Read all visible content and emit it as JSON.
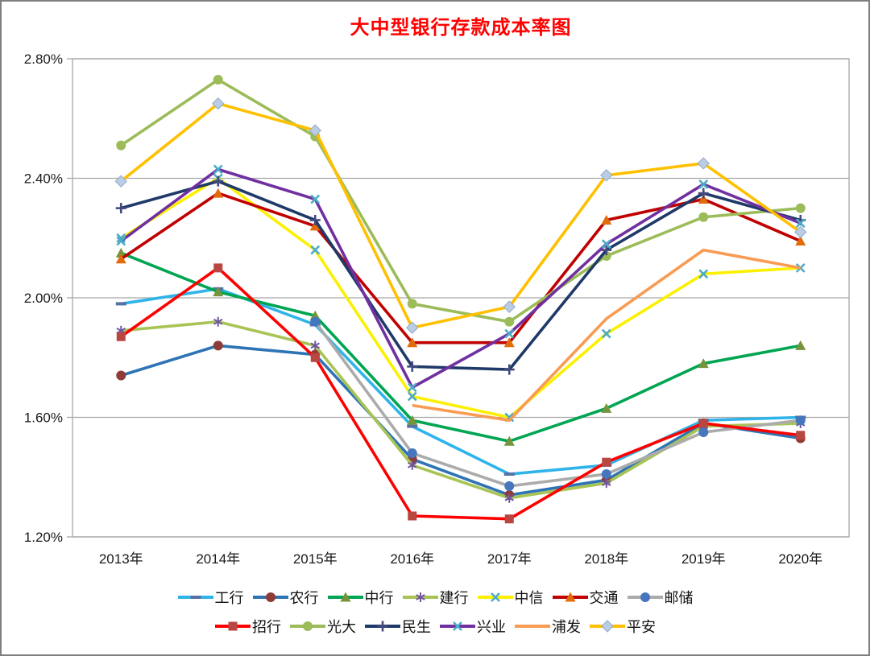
{
  "chart_data": {
    "type": "line",
    "title": "大中型银行存款成本率图",
    "title_color": "#FF0000",
    "x_categories": [
      "2013年",
      "2014年",
      "2015年",
      "2016年",
      "2017年",
      "2018年",
      "2019年",
      "2020年"
    ],
    "y_ticks": [
      "2.80%",
      "2.40%",
      "2.00%",
      "1.60%",
      "1.20%"
    ],
    "ylim": [
      1.2,
      2.8
    ],
    "grid": true,
    "gridline_color": "#A6A6A6",
    "axis_text_color": "#1a1a1a",
    "legend_position": "bottom",
    "series": [
      {
        "key": "icbc",
        "name": "工行",
        "color": "#2FB4E9",
        "marker": "dash",
        "marker_color": "#5571A6",
        "values": [
          1.98,
          2.03,
          1.91,
          1.57,
          1.41,
          1.44,
          1.59,
          1.6
        ]
      },
      {
        "key": "abc",
        "name": "农行",
        "color": "#2E74B5",
        "marker": "circle",
        "marker_color": "#8F3B37",
        "values": [
          1.74,
          1.84,
          1.81,
          1.46,
          1.34,
          1.39,
          1.58,
          1.53
        ]
      },
      {
        "key": "boc",
        "name": "中行",
        "color": "#00A551",
        "marker": "triangle",
        "marker_color": "#77933C",
        "values": [
          2.15,
          2.02,
          1.94,
          1.59,
          1.52,
          1.63,
          1.78,
          1.84
        ]
      },
      {
        "key": "ccb",
        "name": "建行",
        "color": "#A8C455",
        "marker": "asterisk",
        "marker_color": "#7056A0",
        "values": [
          1.89,
          1.92,
          1.84,
          1.44,
          1.33,
          1.38,
          1.57,
          1.58
        ]
      },
      {
        "key": "citic",
        "name": "中信",
        "color": "#FCF000",
        "marker": "x",
        "marker_color": "#4BACC6",
        "values": [
          2.2,
          2.4,
          2.16,
          1.67,
          1.6,
          1.88,
          2.08,
          2.1
        ]
      },
      {
        "key": "bocom",
        "name": "交通",
        "color": "#C00000",
        "marker": "triangle",
        "marker_color": "#E26B0A",
        "values": [
          2.13,
          2.35,
          2.24,
          1.85,
          1.85,
          2.26,
          2.33,
          2.19
        ]
      },
      {
        "key": "psbc",
        "name": "邮储",
        "color": "#ABABAB",
        "marker": "circle",
        "marker_color": "#4576BE",
        "values": [
          null,
          null,
          1.92,
          1.48,
          1.37,
          1.41,
          1.55,
          1.59
        ]
      },
      {
        "key": "cmb",
        "name": "招行",
        "color": "#FE0000",
        "marker": "square",
        "marker_color": "#B84742",
        "values": [
          1.87,
          2.1,
          1.8,
          1.27,
          1.26,
          1.45,
          1.58,
          1.54
        ]
      },
      {
        "key": "ceb",
        "name": "光大",
        "color": "#9CBB59",
        "marker": "circle",
        "marker_color": "#9CBB59",
        "values": [
          2.51,
          2.73,
          2.54,
          1.98,
          1.92,
          2.14,
          2.27,
          2.3
        ]
      },
      {
        "key": "minsheng",
        "name": "民生",
        "color": "#1F3969",
        "marker": "plus",
        "marker_color": "#44497E",
        "values": [
          2.3,
          2.39,
          2.26,
          1.77,
          1.76,
          2.16,
          2.35,
          2.26
        ]
      },
      {
        "key": "cib",
        "name": "兴业",
        "color": "#7030A0",
        "marker": "x",
        "marker_color": "#4BACC6",
        "values": [
          2.19,
          2.43,
          2.33,
          1.7,
          1.88,
          2.18,
          2.38,
          2.25
        ]
      },
      {
        "key": "spdb",
        "name": "浦发",
        "color": "#F89B53",
        "marker": "none",
        "marker_color": "#F89B53",
        "values": [
          null,
          null,
          null,
          1.64,
          1.59,
          1.93,
          2.16,
          2.1
        ]
      },
      {
        "key": "pingan",
        "name": "平安",
        "color": "#FFC000",
        "marker": "diamond",
        "marker_color": "#B9CDE5",
        "marker_stroke": "#95A9C9",
        "values": [
          2.39,
          2.65,
          2.56,
          1.9,
          1.97,
          2.41,
          2.45,
          2.22
        ]
      }
    ]
  }
}
